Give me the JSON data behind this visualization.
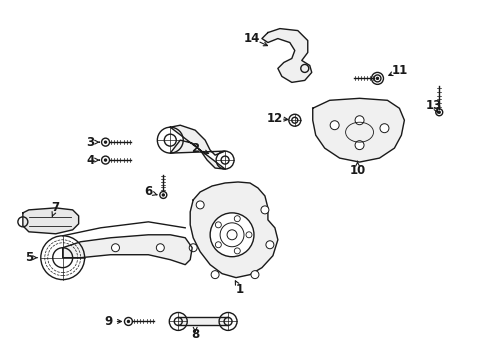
{
  "background_color": "#ffffff",
  "line_color": "#1a1a1a",
  "line_width": 1.0,
  "label_fontsize": 8.5,
  "figsize": [
    4.89,
    3.6
  ],
  "dpi": 100,
  "parts": {
    "knuckle": {
      "color": "#f5f5f5"
    },
    "arm": {
      "color": "#f5f5f5"
    },
    "bracket": {
      "color": "#f5f5f5"
    }
  }
}
